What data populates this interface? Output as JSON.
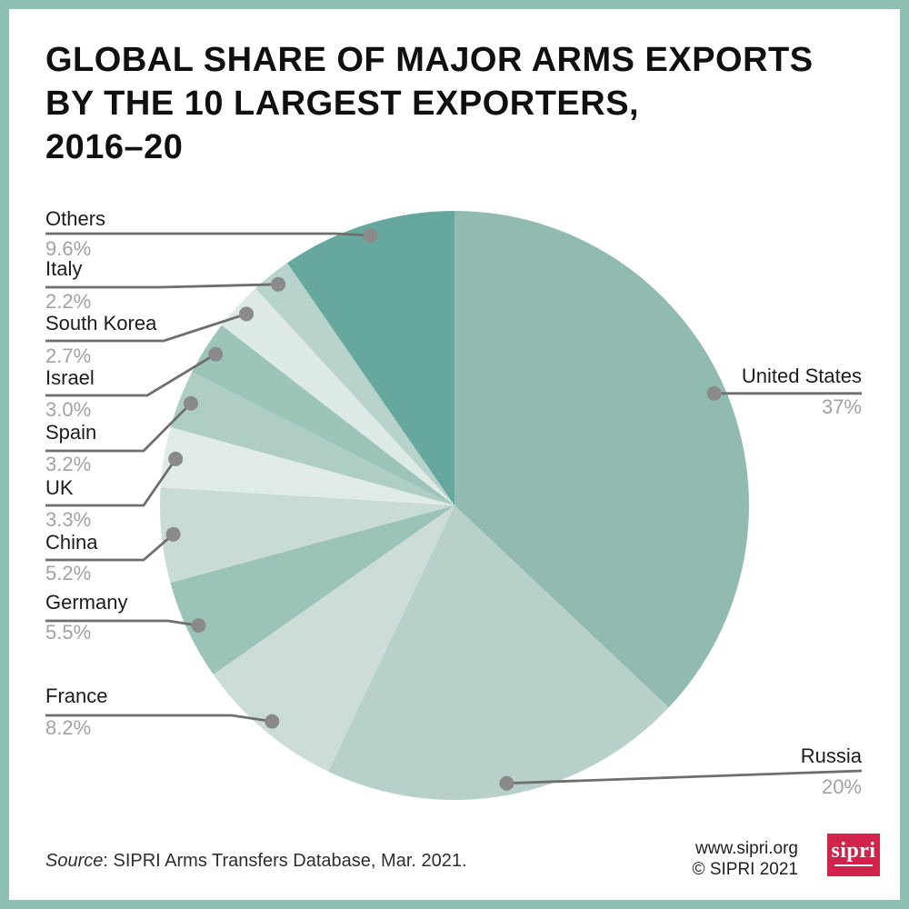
{
  "header": {
    "title_lines": [
      "GLOBAL SHARE OF MAJOR ARMS EXPORTS",
      "BY THE 10 LARGEST EXPORTERS,",
      "2016–20"
    ]
  },
  "chart_data": {
    "type": "pie",
    "title": "GLOBAL SHARE OF MAJOR ARMS EXPORTS BY THE 10 LARGEST EXPORTERS, 2016–20",
    "unit": "% share of global major arms exports",
    "start_angle_deg": 0,
    "direction": "clockwise",
    "legend_position": "callout-labels",
    "slices": [
      {
        "label": "United States",
        "value": 37,
        "display": "37%",
        "color": "#91BBB0",
        "side": "right"
      },
      {
        "label": "Russia",
        "value": 20,
        "display": "20%",
        "color": "#B7D1CA",
        "side": "right"
      },
      {
        "label": "France",
        "value": 8.2,
        "display": "8.2%",
        "color": "#CBDDD6",
        "side": "left"
      },
      {
        "label": "Germany",
        "value": 5.5,
        "display": "5.5%",
        "color": "#9CC3B8",
        "side": "left"
      },
      {
        "label": "China",
        "value": 5.2,
        "display": "5.2%",
        "color": "#C8DCD4",
        "side": "left"
      },
      {
        "label": "UK",
        "value": 3.3,
        "display": "3.3%",
        "color": "#E0EBE7",
        "side": "left"
      },
      {
        "label": "Spain",
        "value": 3.2,
        "display": "3.2%",
        "color": "#AECDC3",
        "side": "left"
      },
      {
        "label": "Israel",
        "value": 3.0,
        "display": "3.0%",
        "color": "#9DC4B9",
        "side": "left"
      },
      {
        "label": "South Korea",
        "value": 2.7,
        "display": "2.7%",
        "color": "#DDE9E4",
        "side": "left"
      },
      {
        "label": "Italy",
        "value": 2.2,
        "display": "2.2%",
        "color": "#B8D3CB",
        "side": "left"
      },
      {
        "label": "Others",
        "value": 9.6,
        "display": "9.6%",
        "color": "#66A89D",
        "side": "left"
      }
    ]
  },
  "footer": {
    "source_label": "Source",
    "source_rest": ": SIPRI Arms Transfers Database, Mar. 2021.",
    "website": "www.sipri.org",
    "copyright": "© SIPRI 2021",
    "logo_text": "sipri"
  },
  "colors": {
    "frame": "#8FC0B4",
    "leader_line": "#6E6E6E",
    "dot": "#8A8A8A",
    "label_text": "#1C1C1C",
    "value_text": "#A2A2A2",
    "logo_red": "#D2234C"
  }
}
